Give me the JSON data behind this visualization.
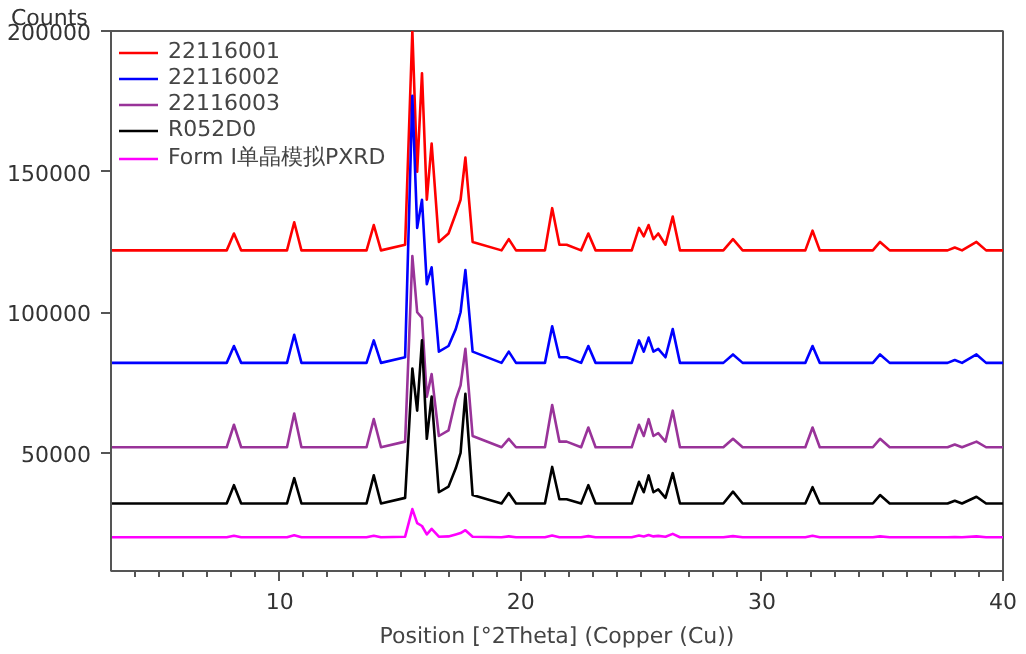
{
  "chart_data": {
    "type": "line",
    "xlabel": "Position [°2Theta] (Copper (Cu))",
    "ylabel": "Counts",
    "x": [
      3,
      7.8,
      8.1,
      8.4,
      10.3,
      10.6,
      10.9,
      13.6,
      13.9,
      14.2,
      15.2,
      15.5,
      15.7,
      15.9,
      16.1,
      16.3,
      16.6,
      17.0,
      17.3,
      17.5,
      17.7,
      18.0,
      19.2,
      19.5,
      19.8,
      21.0,
      21.3,
      21.6,
      21.9,
      22.5,
      22.8,
      23.1,
      24.6,
      24.9,
      25.1,
      25.3,
      25.5,
      25.7,
      26.0,
      26.3,
      26.6,
      28.4,
      28.8,
      29.2,
      31.8,
      32.1,
      32.4,
      34.6,
      34.9,
      35.3,
      37.7,
      38.0,
      38.3,
      38.9,
      39.3,
      40
    ],
    "series": [
      {
        "name": "22116001",
        "color": "#ff0000",
        "values": [
          122000,
          122000,
          128000,
          122000,
          122000,
          132000,
          122000,
          122000,
          131000,
          122000,
          124000,
          200000,
          150000,
          185000,
          140000,
          160000,
          125000,
          128000,
          135000,
          140000,
          155000,
          125000,
          122000,
          126000,
          122000,
          122000,
          137000,
          124000,
          124000,
          122000,
          128000,
          122000,
          122000,
          130000,
          127000,
          131000,
          126000,
          128000,
          124000,
          134000,
          122000,
          122000,
          126000,
          122000,
          122000,
          129000,
          122000,
          122000,
          125000,
          122000,
          122000,
          123000,
          122000,
          125000,
          122000,
          122000
        ]
      },
      {
        "name": "22116002",
        "color": "#0000ff",
        "values": [
          82000,
          82000,
          88000,
          82000,
          82000,
          92000,
          82000,
          82000,
          90000,
          82000,
          84000,
          177000,
          130000,
          140000,
          110000,
          116000,
          86000,
          88000,
          94000,
          100000,
          115000,
          86000,
          82000,
          86000,
          82000,
          82000,
          95000,
          84000,
          84000,
          82000,
          88000,
          82000,
          82000,
          90000,
          86000,
          91000,
          86000,
          87000,
          84000,
          94000,
          82000,
          82000,
          85000,
          82000,
          82000,
          88000,
          82000,
          82000,
          85000,
          82000,
          82000,
          83000,
          82000,
          85000,
          82000,
          82000
        ]
      },
      {
        "name": "22116003",
        "color": "#993399",
        "values": [
          52000,
          52000,
          60000,
          52000,
          52000,
          64000,
          52000,
          52000,
          62000,
          52000,
          54000,
          120000,
          100000,
          98000,
          70000,
          78000,
          56000,
          58000,
          69000,
          74000,
          87000,
          56000,
          52000,
          55000,
          52000,
          52000,
          67000,
          54000,
          54000,
          52000,
          59000,
          52000,
          52000,
          60000,
          56000,
          62000,
          56000,
          57000,
          54000,
          65000,
          52000,
          52000,
          55000,
          52000,
          52000,
          59000,
          52000,
          52000,
          55000,
          52000,
          52000,
          53000,
          52000,
          54000,
          52000,
          52000
        ]
      },
      {
        "name": "R052D0",
        "color": "#000000",
        "values": [
          32000,
          32000,
          38500,
          32000,
          32000,
          41000,
          32000,
          32000,
          42000,
          32000,
          34000,
          80000,
          65000,
          90000,
          55000,
          70000,
          36000,
          38000,
          44500,
          50000,
          71000,
          35000,
          32000,
          35700,
          32000,
          32000,
          45000,
          33500,
          33500,
          32000,
          38500,
          32000,
          32000,
          39700,
          36000,
          42000,
          36000,
          37000,
          34000,
          42800,
          32000,
          32000,
          36200,
          32000,
          32000,
          37800,
          32000,
          32000,
          35000,
          32000,
          32000,
          33000,
          32000,
          34400,
          32000,
          32000
        ]
      },
      {
        "name": "Form I单晶模拟PXRD",
        "color": "#ff00ff",
        "values": [
          20000,
          20000,
          20500,
          20000,
          20000,
          20700,
          20000,
          20000,
          20500,
          20000,
          20200,
          30000,
          25000,
          24000,
          21000,
          23000,
          20200,
          20300,
          21000,
          21500,
          22500,
          20200,
          20000,
          20300,
          20000,
          20000,
          20600,
          20000,
          20000,
          20000,
          20400,
          20000,
          20000,
          20600,
          20300,
          20800,
          20300,
          20500,
          20200,
          21200,
          20000,
          20000,
          20400,
          20000,
          20000,
          20500,
          20000,
          20000,
          20300,
          20000,
          20000,
          20100,
          20000,
          20300,
          20000,
          20000
        ]
      }
    ],
    "xlim": [
      3,
      40
    ],
    "ylim": [
      8000,
      200000
    ],
    "xticks": [
      {
        "value": 4,
        "label": null
      },
      {
        "value": 5,
        "label": null
      },
      {
        "value": 6,
        "label": null
      },
      {
        "value": 7,
        "label": null
      },
      {
        "value": 8,
        "label": null
      },
      {
        "value": 9,
        "label": null
      },
      10,
      {
        "value": 11,
        "label": null
      },
      {
        "value": 12,
        "label": null
      },
      {
        "value": 13,
        "label": null
      },
      {
        "value": 14,
        "label": null
      },
      {
        "value": 15,
        "label": null
      },
      {
        "value": 16,
        "label": null
      },
      {
        "value": 17,
        "label": null
      },
      {
        "value": 18,
        "label": null
      },
      {
        "value": 19,
        "label": null
      },
      20,
      {
        "value": 21,
        "label": null
      },
      {
        "value": 22,
        "label": null
      },
      {
        "value": 23,
        "label": null
      },
      {
        "value": 24,
        "label": null
      },
      {
        "value": 25,
        "label": null
      },
      {
        "value": 26,
        "label": null
      },
      {
        "value": 27,
        "label": null
      },
      {
        "value": 28,
        "label": null
      },
      {
        "value": 29,
        "label": null
      },
      30,
      {
        "value": 31,
        "label": null
      },
      {
        "value": 32,
        "label": null
      },
      {
        "value": 33,
        "label": null
      },
      {
        "value": 34,
        "label": null
      },
      {
        "value": 35,
        "label": null
      },
      {
        "value": 36,
        "label": null
      },
      {
        "value": 37,
        "label": null
      },
      {
        "value": 38,
        "label": null
      },
      {
        "value": 39,
        "label": null
      },
      40
    ],
    "yticks": [
      50000,
      100000,
      150000,
      200000
    ],
    "grid": false,
    "legend": "top left",
    "line_style": "solid"
  }
}
